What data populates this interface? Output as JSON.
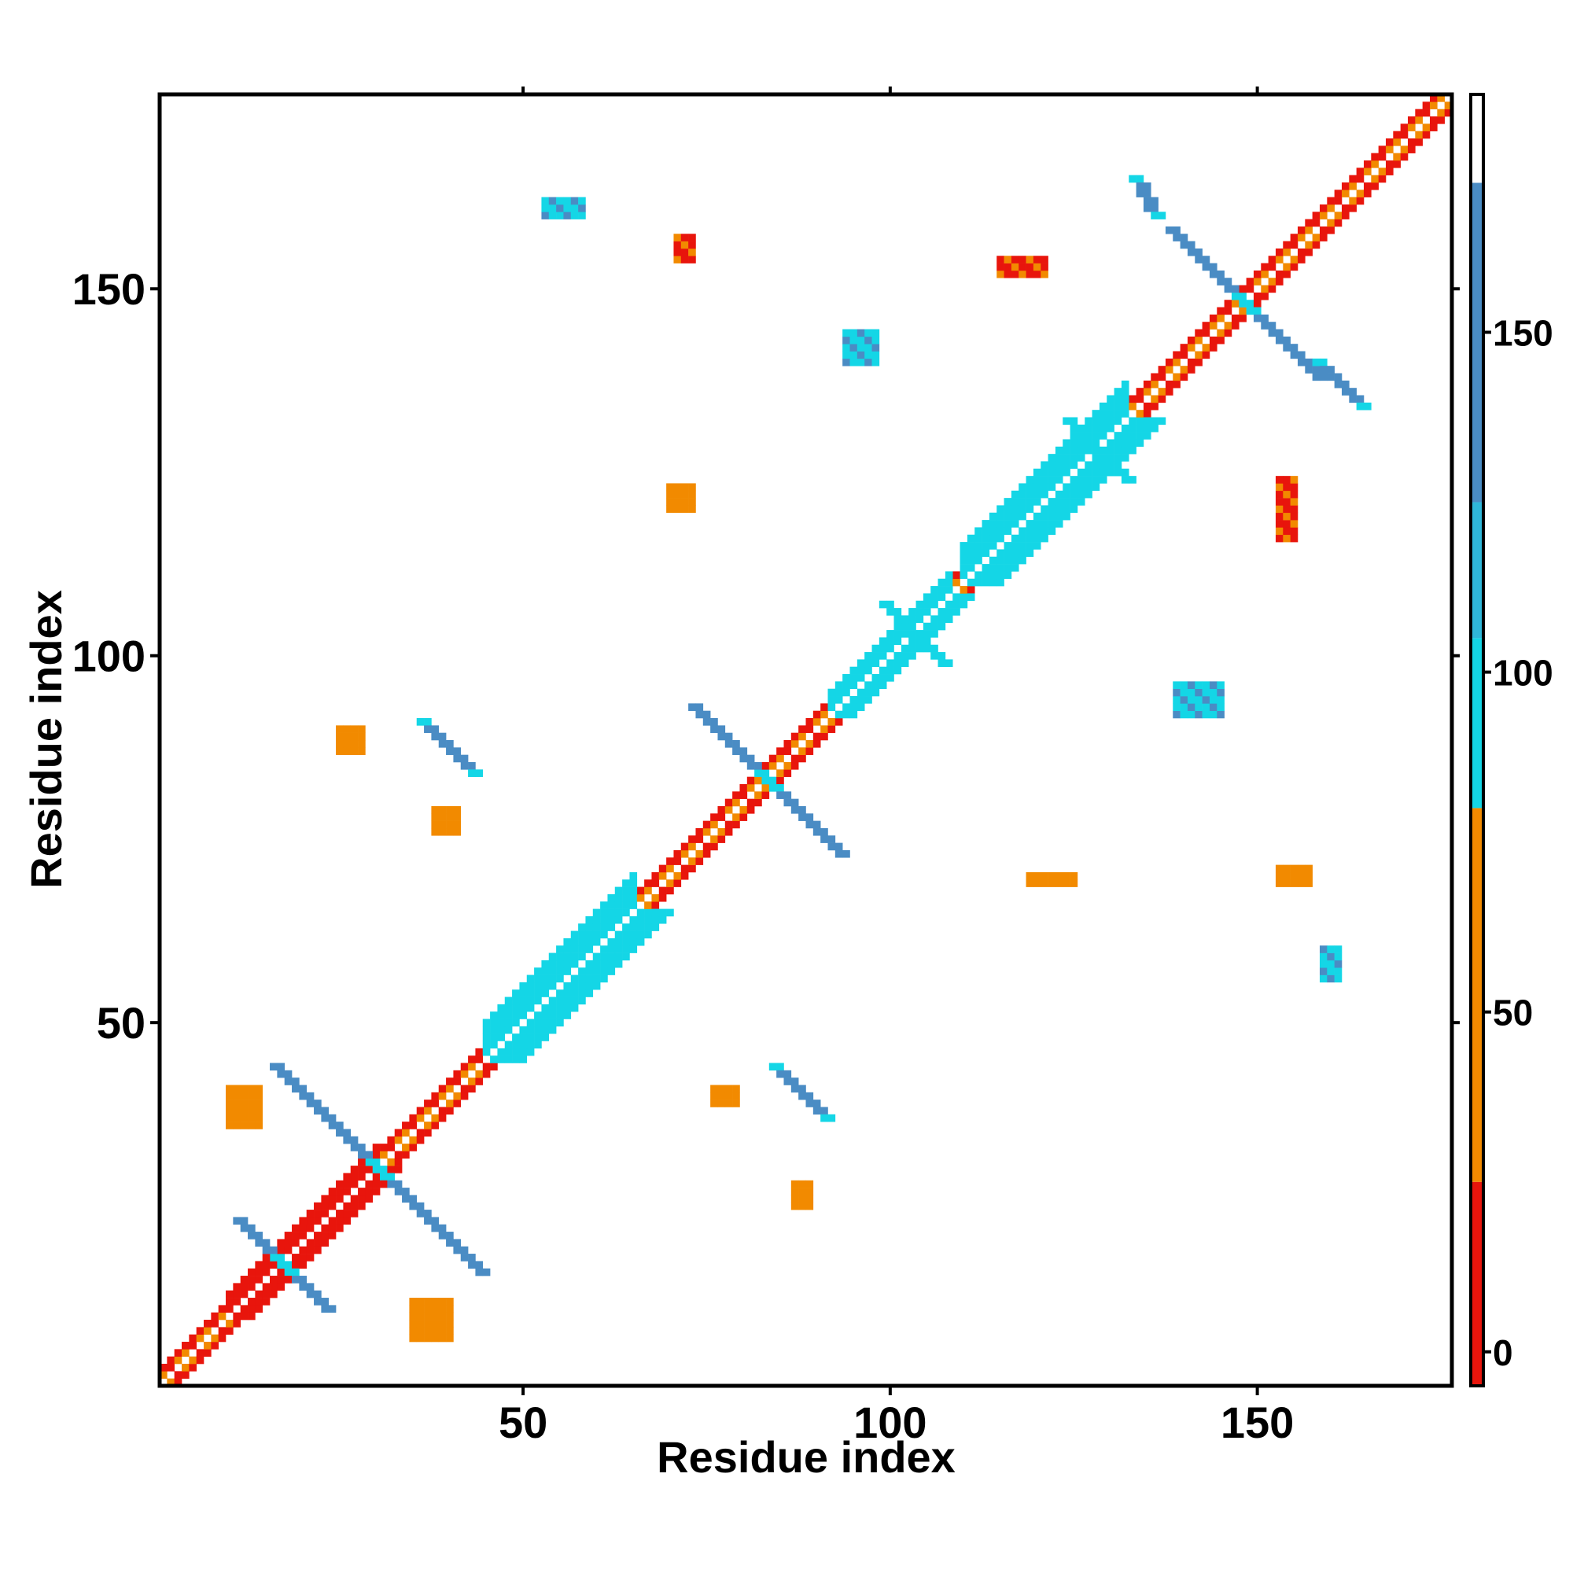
{
  "chart_data": {
    "type": "heatmap",
    "title": "",
    "xlabel": "Residue index",
    "ylabel": "Residue index",
    "xlim": [
      1,
      176
    ],
    "ylim": [
      1,
      176
    ],
    "x_ticks": [
      50,
      100,
      150
    ],
    "y_ticks": [
      50,
      100,
      150
    ],
    "colorbar": {
      "ticks": [
        0,
        50,
        100,
        150
      ],
      "range": [
        -5,
        185
      ],
      "bands": [
        {
          "from": -5,
          "to": 25,
          "color": "#e8150c"
        },
        {
          "from": 25,
          "to": 80,
          "color": "#f28a00"
        },
        {
          "from": 80,
          "to": 105,
          "color": "#14d6e6"
        },
        {
          "from": 105,
          "to": 125,
          "color": "#2fb7d9"
        },
        {
          "from": 125,
          "to": 172,
          "color": "#4a8cc4"
        },
        {
          "from": 172,
          "to": 185,
          "color": "#ffffff"
        }
      ]
    },
    "colors": {
      "red": "#e8150c",
      "orange": "#f28a00",
      "cyan": "#14d6e6",
      "blue": "#4a8cc4"
    },
    "regions": [
      {
        "kind": "diagonal",
        "from": 1,
        "to": 176,
        "width": 2,
        "bands": [
          "orange",
          "red",
          "orange"
        ]
      },
      {
        "kind": "diagonal",
        "from": 10,
        "to": 30,
        "width": 3,
        "color": "red"
      },
      {
        "kind": "diagonal",
        "from": 45,
        "to": 65,
        "width": 5,
        "color": "cyan"
      },
      {
        "kind": "diagonal",
        "from": 110,
        "to": 132,
        "width": 5,
        "color": "cyan"
      },
      {
        "kind": "diagonal",
        "from": 92,
        "to": 108,
        "width": 3,
        "color": "cyan"
      },
      {
        "kind": "anti",
        "center": [
          30,
          30
        ],
        "length": 14,
        "width": 2,
        "color": "blue"
      },
      {
        "kind": "anti",
        "center": [
          17,
          17
        ],
        "length": 6,
        "width": 2,
        "color": "blue"
      },
      {
        "kind": "anti",
        "center": [
          83,
          83
        ],
        "length": 10,
        "width": 2,
        "color": "blue"
      },
      {
        "kind": "anti",
        "center": [
          148,
          148
        ],
        "length": 10,
        "width": 2,
        "color": "blue"
      },
      {
        "kind": "anti",
        "center": [
          128,
          128
        ],
        "length": 4,
        "width": 2,
        "color": "cyan"
      },
      {
        "kind": "anti",
        "center": [
          103,
          103
        ],
        "length": 4,
        "width": 2,
        "color": "cyan"
      },
      {
        "kind": "parallel",
        "from": [
          36,
          91
        ],
        "to": [
          43,
          84
        ],
        "width": 2,
        "color": "blue"
      },
      {
        "kind": "parallel",
        "from": [
          84,
          44
        ],
        "to": [
          91,
          37
        ],
        "width": 2,
        "color": "blue"
      },
      {
        "kind": "parallel",
        "from": [
          133,
          165
        ],
        "to": [
          136,
          160
        ],
        "width": 2,
        "color": "blue"
      },
      {
        "kind": "parallel",
        "from": [
          158,
          140
        ],
        "to": [
          164,
          134
        ],
        "width": 2,
        "color": "blue"
      },
      {
        "kind": "patch",
        "x": [
          53,
          58
        ],
        "y": [
          160,
          162
        ],
        "color": "cyan"
      },
      {
        "kind": "patch",
        "x": [
          71,
          73
        ],
        "y": [
          154,
          157
        ],
        "color": "red"
      },
      {
        "kind": "patch",
        "x": [
          94,
          98
        ],
        "y": [
          140,
          144
        ],
        "color": "cyan"
      },
      {
        "kind": "patch",
        "x": [
          115,
          121
        ],
        "y": [
          152,
          154
        ],
        "color": "red"
      },
      {
        "kind": "patch",
        "x": [
          70,
          73
        ],
        "y": [
          120,
          123
        ],
        "color": "orange"
      },
      {
        "kind": "patch",
        "x": [
          139,
          145
        ],
        "y": [
          92,
          96
        ],
        "color": "cyan"
      },
      {
        "kind": "patch",
        "x": [
          153,
          155
        ],
        "y": [
          116,
          124
        ],
        "color": "red"
      },
      {
        "kind": "patch",
        "x": [
          153,
          157
        ],
        "y": [
          69,
          71
        ],
        "color": "orange"
      },
      {
        "kind": "patch",
        "x": [
          119,
          125
        ],
        "y": [
          69,
          70
        ],
        "color": "orange"
      },
      {
        "kind": "patch",
        "x": [
          159,
          161
        ],
        "y": [
          56,
          60
        ],
        "color": "cyan"
      },
      {
        "kind": "patch",
        "x": [
          10,
          14
        ],
        "y": [
          36,
          41
        ],
        "color": "orange"
      },
      {
        "kind": "patch",
        "x": [
          35,
          40
        ],
        "y": [
          7,
          12
        ],
        "color": "orange"
      },
      {
        "kind": "patch",
        "x": [
          76,
          79
        ],
        "y": [
          39,
          41
        ],
        "color": "orange"
      },
      {
        "kind": "patch",
        "x": [
          87,
          89
        ],
        "y": [
          25,
          28
        ],
        "color": "orange"
      },
      {
        "kind": "patch",
        "x": [
          38,
          41
        ],
        "y": [
          76,
          79
        ],
        "color": "orange"
      },
      {
        "kind": "patch",
        "x": [
          25,
          28
        ],
        "y": [
          87,
          90
        ],
        "color": "orange"
      }
    ]
  }
}
